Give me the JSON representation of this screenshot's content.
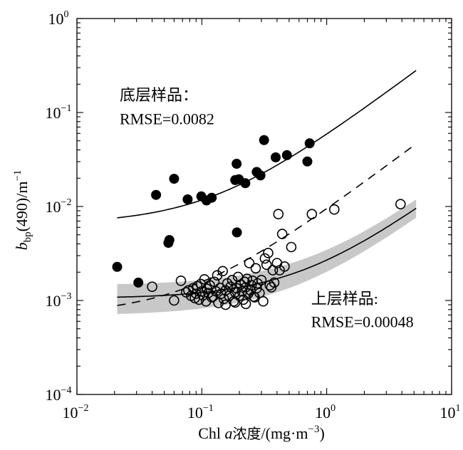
{
  "chart_data": {
    "type": "scatter",
    "x_scale": "log",
    "y_scale": "log",
    "xlim": [
      0.01,
      10
    ],
    "ylim": [
      0.0001,
      1
    ],
    "xlabel": {
      "main": "Chl ",
      "italic": "a",
      "cn": "浓度",
      "unit_pre": "/(mg·m",
      "unit_exp": "−3",
      "unit_post": ")"
    },
    "ylabel": {
      "var": "b",
      "sub": "bp",
      "mid": "(490)/m",
      "exp": "−1"
    },
    "x_ticks": [
      {
        "value": 0.01,
        "base": "10",
        "exp": "−2"
      },
      {
        "value": 0.1,
        "base": "10",
        "exp": "−1"
      },
      {
        "value": 1,
        "base": "10",
        "exp": "0"
      },
      {
        "value": 10,
        "base": "10",
        "exp": "1"
      }
    ],
    "y_ticks": [
      {
        "value": 0.0001,
        "base": "10",
        "exp": "−4"
      },
      {
        "value": 0.001,
        "base": "10",
        "exp": "−3"
      },
      {
        "value": 0.01,
        "base": "10",
        "exp": "−2"
      },
      {
        "value": 0.1,
        "base": "10",
        "exp": "−1"
      },
      {
        "value": 1,
        "base": "10",
        "exp": "0"
      }
    ],
    "annotations": [
      {
        "line1": "底层样品：",
        "line2": "RMSE=0.0082",
        "x": 0.022,
        "y1": 0.135,
        "y2": 0.075
      },
      {
        "line1": "上层样品:",
        "line2": "RMSE=0.00048",
        "x": 0.75,
        "y1": 0.00092,
        "y2": 0.00052
      }
    ],
    "series": [
      {
        "marker": "filled-circle",
        "points": [
          [
            0.021,
            0.00228
          ],
          [
            0.031,
            0.00155
          ],
          [
            0.043,
            0.0133
          ],
          [
            0.054,
            0.0041
          ],
          [
            0.055,
            0.0044
          ],
          [
            0.06,
            0.0197
          ],
          [
            0.077,
            0.0119
          ],
          [
            0.099,
            0.0128
          ],
          [
            0.109,
            0.0116
          ],
          [
            0.12,
            0.0124
          ],
          [
            0.185,
            0.0191
          ],
          [
            0.19,
            0.0285
          ],
          [
            0.191,
            0.0053
          ],
          [
            0.198,
            0.0195
          ],
          [
            0.223,
            0.0177
          ],
          [
            0.275,
            0.0233
          ],
          [
            0.295,
            0.0214
          ],
          [
            0.315,
            0.0508
          ],
          [
            0.39,
            0.0333
          ],
          [
            0.48,
            0.0352
          ],
          [
            0.7,
            0.0301
          ],
          [
            0.73,
            0.047
          ]
        ]
      },
      {
        "marker": "open-circle",
        "points": [
          [
            0.04,
            0.0014
          ],
          [
            0.06,
            0.001
          ],
          [
            0.068,
            0.00162
          ],
          [
            0.075,
            0.00122
          ],
          [
            0.078,
            0.00128
          ],
          [
            0.082,
            0.00112
          ],
          [
            0.085,
            0.00135
          ],
          [
            0.088,
            0.00106
          ],
          [
            0.09,
            0.00118
          ],
          [
            0.092,
            0.00142
          ],
          [
            0.095,
            0.00102
          ],
          [
            0.098,
            0.0015
          ],
          [
            0.1,
            0.00125
          ],
          [
            0.102,
            0.00113
          ],
          [
            0.105,
            0.00168
          ],
          [
            0.108,
            0.00098
          ],
          [
            0.11,
            0.00133
          ],
          [
            0.113,
            0.0012
          ],
          [
            0.116,
            0.00145
          ],
          [
            0.12,
            0.00108
          ],
          [
            0.123,
            0.0011
          ],
          [
            0.126,
            0.00158
          ],
          [
            0.13,
            0.00125
          ],
          [
            0.133,
            0.00185
          ],
          [
            0.136,
            0.00094
          ],
          [
            0.14,
            0.00136
          ],
          [
            0.143,
            0.00118
          ],
          [
            0.147,
            0.00205
          ],
          [
            0.15,
            0.00104
          ],
          [
            0.155,
            0.00128
          ],
          [
            0.16,
            0.00152
          ],
          [
            0.165,
            0.00112
          ],
          [
            0.17,
            0.0014
          ],
          [
            0.175,
            0.00165
          ],
          [
            0.18,
            0.00098
          ],
          [
            0.185,
            0.00122
          ],
          [
            0.19,
            0.00135
          ],
          [
            0.195,
            0.00178
          ],
          [
            0.2,
            0.00112
          ],
          [
            0.205,
            0.00148
          ],
          [
            0.21,
            0.00125
          ],
          [
            0.215,
            0.00102
          ],
          [
            0.22,
            0.00158
          ],
          [
            0.225,
            0.00138
          ],
          [
            0.23,
            0.0017
          ],
          [
            0.235,
            0.00118
          ],
          [
            0.24,
            0.0025
          ],
          [
            0.245,
            0.00128
          ],
          [
            0.25,
            0.00145
          ],
          [
            0.255,
            0.00162
          ],
          [
            0.26,
            0.0011
          ],
          [
            0.27,
            0.0022
          ],
          [
            0.275,
            0.00135
          ],
          [
            0.28,
            0.00152
          ],
          [
            0.29,
            0.0012
          ],
          [
            0.3,
            0.00165
          ],
          [
            0.31,
            0.00098
          ],
          [
            0.32,
            0.0028
          ],
          [
            0.33,
            0.0024
          ],
          [
            0.34,
            0.0032
          ],
          [
            0.35,
            0.00145
          ],
          [
            0.36,
            0.00138
          ],
          [
            0.37,
            0.0021
          ],
          [
            0.38,
            0.00155
          ],
          [
            0.4,
            0.0025
          ],
          [
            0.41,
            0.0083
          ],
          [
            0.42,
            0.0021
          ],
          [
            0.44,
            0.0051
          ],
          [
            0.46,
            0.0023
          ],
          [
            0.52,
            0.0037
          ],
          [
            0.76,
            0.0083
          ],
          [
            1.15,
            0.0093
          ],
          [
            3.9,
            0.0106
          ],
          [
            0.155,
            0.0009
          ],
          [
            0.185,
            0.00095
          ],
          [
            0.225,
            0.00092
          ],
          [
            0.265,
            0.00108
          ]
        ]
      }
    ],
    "curves": [
      {
        "style": "solid",
        "a": 0.00647,
        "b": 0.0526,
        "x_range": [
          0.021,
          5.2
        ]
      },
      {
        "style": "dashed",
        "a": 0.0007,
        "b": 0.0088,
        "x_range": [
          0.021,
          5.2
        ]
      },
      {
        "style": "solid",
        "a": 0.00105,
        "b": 0.00164,
        "x_range": [
          0.021,
          5.2
        ]
      }
    ],
    "band": {
      "a_lo": 0.00069,
      "b_lo": 0.00133,
      "a_hi": 0.00145,
      "b_hi": 0.00201,
      "x_range": [
        0.021,
        5.2
      ],
      "color": "#c8c8c8"
    }
  }
}
